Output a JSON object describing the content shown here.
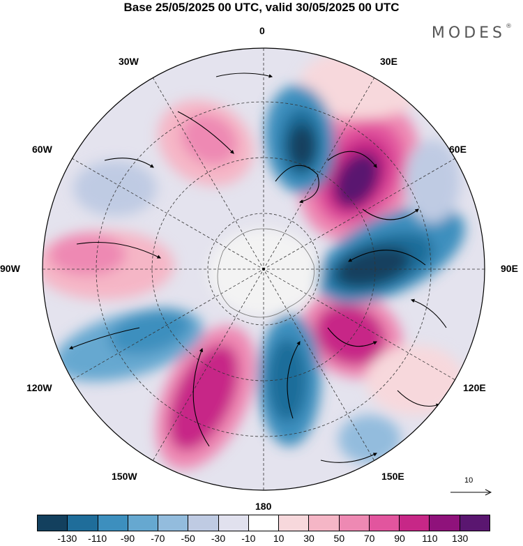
{
  "title": "Base 25/05/2025 00 UTC, valid 30/05/2025 00 UTC",
  "brand": "MODES",
  "brand_mark": "®",
  "lon_labels": {
    "l0": "0",
    "l30e": "30E",
    "l60e": "60E",
    "l90e": "90E",
    "l120e": "120E",
    "l150e": "150E",
    "l180": "180",
    "l150w": "150W",
    "l120w": "120W",
    "l90w": "90W",
    "l60w": "60W",
    "l30w": "30W"
  },
  "vector_reference": "10",
  "colorbar": {
    "colors": [
      "#13405e",
      "#1f6d9a",
      "#3d8fbe",
      "#66a8d0",
      "#93bcdd",
      "#bfcbe3",
      "#e1e1ee",
      "#ffffff",
      "#f7d8dc",
      "#f5b6c6",
      "#ee89b3",
      "#e2559e",
      "#c72787",
      "#8f127b",
      "#5a1670"
    ],
    "ticks": [
      "-130",
      "-110",
      "-90",
      "-70",
      "-50",
      "-30",
      "-10",
      "10",
      "30",
      "50",
      "70",
      "90",
      "110",
      "130"
    ]
  }
}
